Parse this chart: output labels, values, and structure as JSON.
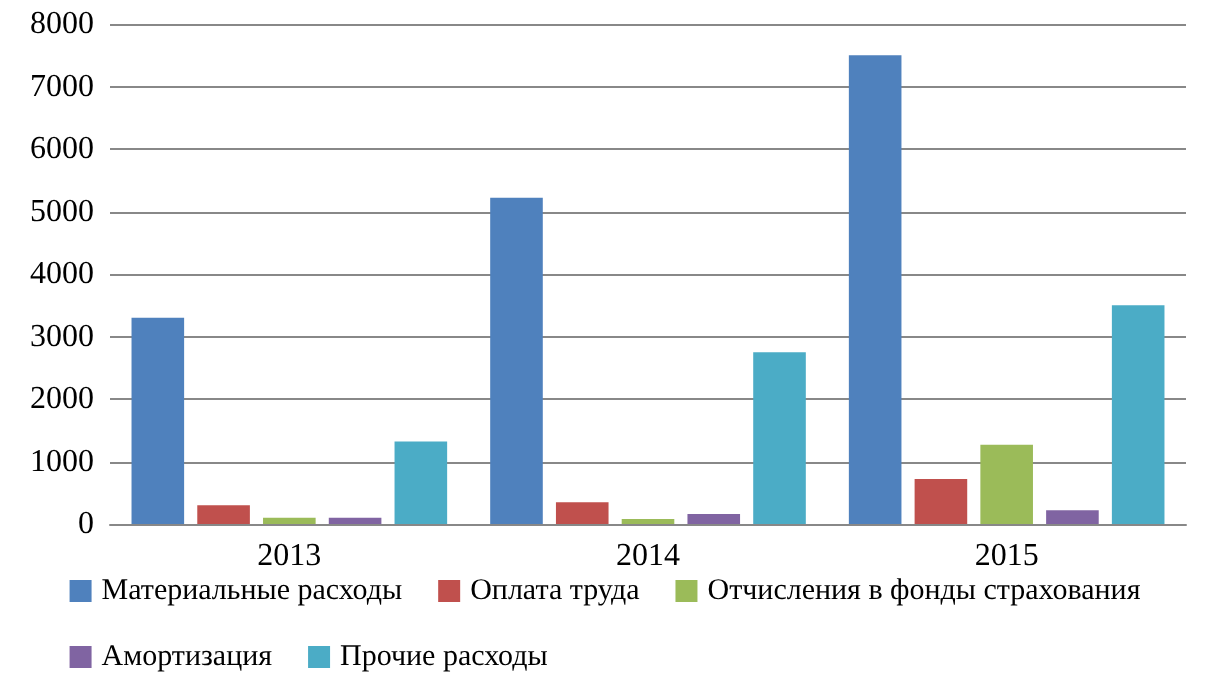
{
  "chart_data": {
    "type": "bar",
    "categories": [
      "2013",
      "2014",
      "2015"
    ],
    "series": [
      {
        "name": "Материальные расходы",
        "color": "#4f81bd",
        "values": [
          3300,
          5220,
          7500
        ]
      },
      {
        "name": "Оплата труда",
        "color": "#c0504d",
        "values": [
          300,
          350,
          720
        ]
      },
      {
        "name": "Отчисления в фонды страхования",
        "color": "#9bbb59",
        "values": [
          100,
          80,
          1270
        ]
      },
      {
        "name": "Амортизация",
        "color": "#8064a2",
        "values": [
          100,
          160,
          220
        ]
      },
      {
        "name": "Прочие расходы",
        "color": "#4bacc6",
        "values": [
          1320,
          2750,
          3500
        ]
      }
    ],
    "ylim": [
      0,
      8000
    ],
    "yticks": [
      0,
      1000,
      2000,
      3000,
      4000,
      5000,
      6000,
      7000,
      8000
    ],
    "grid": "y",
    "legend": "bottom"
  }
}
